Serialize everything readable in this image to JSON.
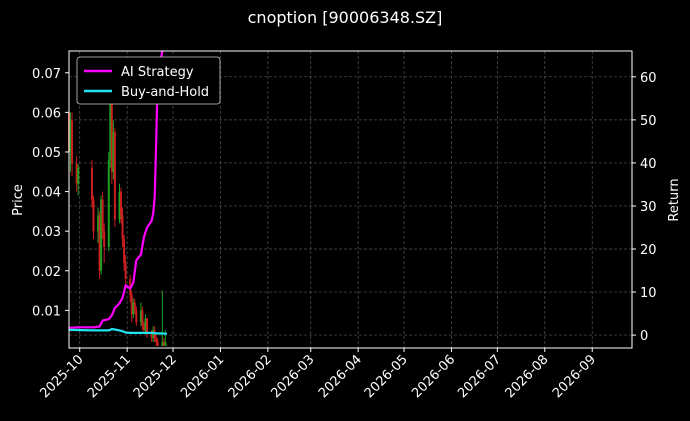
{
  "chart_data": {
    "type": "line",
    "title": "cnoption [90006348.SZ]",
    "ylabel_left": "Price",
    "ylabel_right": "Return",
    "x_range": [
      "2025-09-24",
      "2026-09-27"
    ],
    "x_ticks": [
      "2025-10",
      "2025-11",
      "2025-12",
      "2026-01",
      "2026-02",
      "2026-03",
      "2026-04",
      "2026-05",
      "2026-06",
      "2026-07",
      "2026-08",
      "2026-09"
    ],
    "ylim_left": [
      0.0005,
      0.0755
    ],
    "yticks_left": [
      0.01,
      0.02,
      0.03,
      0.04,
      0.05,
      0.06,
      0.07
    ],
    "ylim_right": [
      -3,
      66
    ],
    "yticks_right": [
      0,
      10,
      20,
      30,
      40,
      50,
      60
    ],
    "grid": true,
    "legend_position": "top-left",
    "legend": [
      "AI Strategy",
      "Buy-and-Hold"
    ],
    "colors": {
      "background": "#000000",
      "ai_strategy": "#ff00ff",
      "buy_and_hold": "#22e4ee",
      "candle_up": "#1fa01f",
      "candle_down": "#cc1f1f",
      "grid": "#555555"
    },
    "price_candles": [
      {
        "date": "2025-09-24",
        "open": 0.06,
        "close": 0.05,
        "high": 0.067,
        "low": 0.047
      },
      {
        "date": "2025-09-25",
        "open": 0.05,
        "close": 0.058,
        "high": 0.06,
        "low": 0.045
      },
      {
        "date": "2025-09-26",
        "open": 0.058,
        "close": 0.047,
        "high": 0.06,
        "low": 0.044
      },
      {
        "date": "2025-09-29",
        "open": 0.047,
        "close": 0.042,
        "high": 0.049,
        "low": 0.04
      },
      {
        "date": "2025-09-30",
        "open": 0.042,
        "close": 0.046,
        "high": 0.047,
        "low": 0.039
      },
      {
        "date": "2025-10-09",
        "open": 0.046,
        "close": 0.038,
        "high": 0.048,
        "low": 0.036
      },
      {
        "date": "2025-10-10",
        "open": 0.038,
        "close": 0.03,
        "high": 0.039,
        "low": 0.028
      },
      {
        "date": "2025-10-13",
        "open": 0.03,
        "close": 0.034,
        "high": 0.036,
        "low": 0.027
      },
      {
        "date": "2025-10-14",
        "open": 0.034,
        "close": 0.02,
        "high": 0.035,
        "low": 0.018
      },
      {
        "date": "2025-10-15",
        "open": 0.02,
        "close": 0.038,
        "high": 0.039,
        "low": 0.019
      },
      {
        "date": "2025-10-16",
        "open": 0.038,
        "close": 0.03,
        "high": 0.04,
        "low": 0.028
      },
      {
        "date": "2025-10-17",
        "open": 0.03,
        "close": 0.026,
        "high": 0.032,
        "low": 0.022
      },
      {
        "date": "2025-10-20",
        "open": 0.026,
        "close": 0.048,
        "high": 0.05,
        "low": 0.025
      },
      {
        "date": "2025-10-21",
        "open": 0.048,
        "close": 0.062,
        "high": 0.066,
        "low": 0.046
      },
      {
        "date": "2025-10-22",
        "open": 0.062,
        "close": 0.045,
        "high": 0.064,
        "low": 0.042
      },
      {
        "date": "2025-10-23",
        "open": 0.045,
        "close": 0.055,
        "high": 0.058,
        "low": 0.043
      },
      {
        "date": "2025-10-24",
        "open": 0.055,
        "close": 0.033,
        "high": 0.056,
        "low": 0.031
      },
      {
        "date": "2025-10-27",
        "open": 0.033,
        "close": 0.04,
        "high": 0.042,
        "low": 0.032
      },
      {
        "date": "2025-10-28",
        "open": 0.04,
        "close": 0.034,
        "high": 0.041,
        "low": 0.032
      },
      {
        "date": "2025-10-29",
        "open": 0.034,
        "close": 0.028,
        "high": 0.036,
        "low": 0.026
      },
      {
        "date": "2025-10-30",
        "open": 0.028,
        "close": 0.022,
        "high": 0.029,
        "low": 0.02
      },
      {
        "date": "2025-10-31",
        "open": 0.022,
        "close": 0.018,
        "high": 0.024,
        "low": 0.016
      },
      {
        "date": "2025-11-03",
        "open": 0.018,
        "close": 0.014,
        "high": 0.019,
        "low": 0.012
      },
      {
        "date": "2025-11-04",
        "open": 0.014,
        "close": 0.009,
        "high": 0.015,
        "low": 0.007
      },
      {
        "date": "2025-11-05",
        "open": 0.009,
        "close": 0.012,
        "high": 0.013,
        "low": 0.008
      },
      {
        "date": "2025-11-06",
        "open": 0.012,
        "close": 0.01,
        "high": 0.013,
        "low": 0.009
      },
      {
        "date": "2025-11-07",
        "open": 0.01,
        "close": 0.007,
        "high": 0.011,
        "low": 0.006
      },
      {
        "date": "2025-11-10",
        "open": 0.007,
        "close": 0.01,
        "high": 0.012,
        "low": 0.006
      },
      {
        "date": "2025-11-11",
        "open": 0.01,
        "close": 0.006,
        "high": 0.011,
        "low": 0.005
      },
      {
        "date": "2025-11-12",
        "open": 0.006,
        "close": 0.005,
        "high": 0.007,
        "low": 0.004
      },
      {
        "date": "2025-11-13",
        "open": 0.005,
        "close": 0.008,
        "high": 0.009,
        "low": 0.004
      },
      {
        "date": "2025-11-14",
        "open": 0.008,
        "close": 0.004,
        "high": 0.008,
        "low": 0.003
      },
      {
        "date": "2025-11-17",
        "open": 0.004,
        "close": 0.003,
        "high": 0.005,
        "low": 0.002
      },
      {
        "date": "2025-11-18",
        "open": 0.003,
        "close": 0.005,
        "high": 0.006,
        "low": 0.002
      },
      {
        "date": "2025-11-19",
        "open": 0.005,
        "close": 0.003,
        "high": 0.006,
        "low": 0.002
      },
      {
        "date": "2025-11-20",
        "open": 0.003,
        "close": 0.002,
        "high": 0.004,
        "low": 0.001
      },
      {
        "date": "2025-11-21",
        "open": 0.002,
        "close": 0.001,
        "high": 0.003,
        "low": 0.001
      },
      {
        "date": "2025-11-24",
        "open": 0.001,
        "close": 0.002,
        "high": 0.015,
        "low": 0.001
      },
      {
        "date": "2025-11-25",
        "open": 0.002,
        "close": 0.001,
        "high": 0.003,
        "low": 0.001
      },
      {
        "date": "2025-11-26",
        "open": 0.001,
        "close": 0.002,
        "high": 0.005,
        "low": 0.001
      }
    ],
    "series": [
      {
        "name": "AI Strategy",
        "x": [
          "2025-09-24",
          "2025-09-30",
          "2025-10-10",
          "2025-10-14",
          "2025-10-16",
          "2025-10-20",
          "2025-10-22",
          "2025-10-24",
          "2025-10-27",
          "2025-10-29",
          "2025-10-31",
          "2025-11-03",
          "2025-11-05",
          "2025-11-07",
          "2025-11-10",
          "2025-11-12",
          "2025-11-14",
          "2025-11-17",
          "2025-11-18",
          "2025-11-19",
          "2025-11-20",
          "2025-11-21",
          "2025-11-24"
        ],
        "values": [
          1.7,
          1.8,
          1.8,
          2.0,
          3.4,
          3.7,
          4.6,
          6.3,
          7.4,
          8.6,
          11.6,
          10.8,
          12.2,
          17.4,
          18.7,
          22.8,
          25.0,
          26.5,
          28.2,
          32.0,
          45.0,
          60.0,
          66.0
        ]
      },
      {
        "name": "Buy-and-Hold",
        "x": [
          "2025-09-24",
          "2025-10-10",
          "2025-10-17",
          "2025-10-20",
          "2025-10-22",
          "2025-10-24",
          "2025-10-27",
          "2025-10-29",
          "2025-10-31",
          "2025-11-03",
          "2025-11-07",
          "2025-11-10",
          "2025-11-14",
          "2025-11-17",
          "2025-11-20",
          "2025-11-24",
          "2025-11-27"
        ],
        "values": [
          1.2,
          1.1,
          1.1,
          1.1,
          1.4,
          1.3,
          1.1,
          0.9,
          0.6,
          0.5,
          0.5,
          0.5,
          0.5,
          0.5,
          0.4,
          0.4,
          0.3
        ]
      }
    ]
  }
}
